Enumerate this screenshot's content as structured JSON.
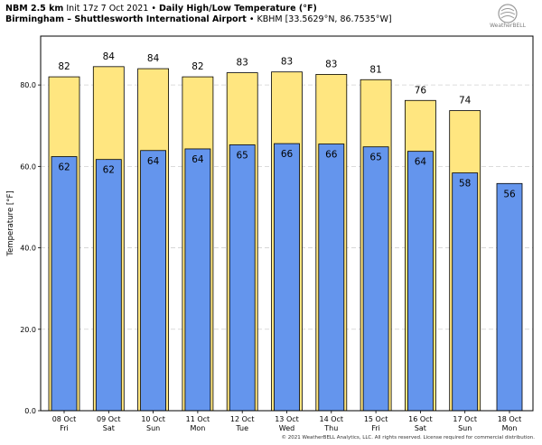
{
  "header": {
    "model": "NBM 2.5 km",
    "init": "Init 17z 7 Oct 2021",
    "sep": "•",
    "product": "Daily High/Low Temperature (°F)",
    "station": "Birmingham – Shuttlesworth International Airport",
    "station_code": "KBHM [33.5629°N, 86.7535°W]"
  },
  "logo": {
    "text": "WeatherBELL"
  },
  "copyright": "© 2021 WeatherBELL Analytics, LLC. All rights reserved. License required for commercial distribution.",
  "colors": {
    "high": "#ffe680",
    "low": "#6495ed",
    "border": "#000000",
    "grid": "#d0d0d0"
  },
  "chart_data": {
    "type": "bar",
    "ylabel": "Temperature [°F]",
    "ylim": [
      0,
      92
    ],
    "yticks": [
      0,
      20,
      40,
      60,
      80
    ],
    "ytick_labels": [
      "0.0",
      "20.0",
      "40.0",
      "60.0",
      "80.0"
    ],
    "grid": "horizontal dashed",
    "categories": [
      "08 Oct",
      "09 Oct",
      "10 Oct",
      "11 Oct",
      "12 Oct",
      "13 Oct",
      "14 Oct",
      "15 Oct",
      "16 Oct",
      "17 Oct",
      "18 Oct"
    ],
    "days": [
      "Fri",
      "Sat",
      "Sun",
      "Mon",
      "Tue",
      "Wed",
      "Thu",
      "Fri",
      "Sat",
      "Sun",
      "Mon"
    ],
    "series": [
      {
        "values": [
          82,
          84.5,
          84,
          82,
          83,
          83.2,
          82.6,
          81.3,
          76.2,
          73.7,
          null
        ],
        "labels": [
          "82",
          "84",
          "84",
          "82",
          "83",
          "83",
          "83",
          "81",
          "76",
          "74",
          ""
        ]
      },
      {
        "values": [
          62.4,
          61.7,
          63.9,
          64.3,
          65.3,
          65.6,
          65.5,
          64.8,
          63.7,
          58.4,
          55.8
        ],
        "labels": [
          "62",
          "62",
          "64",
          "64",
          "65",
          "66",
          "66",
          "65",
          "64",
          "58",
          "56"
        ]
      }
    ]
  }
}
